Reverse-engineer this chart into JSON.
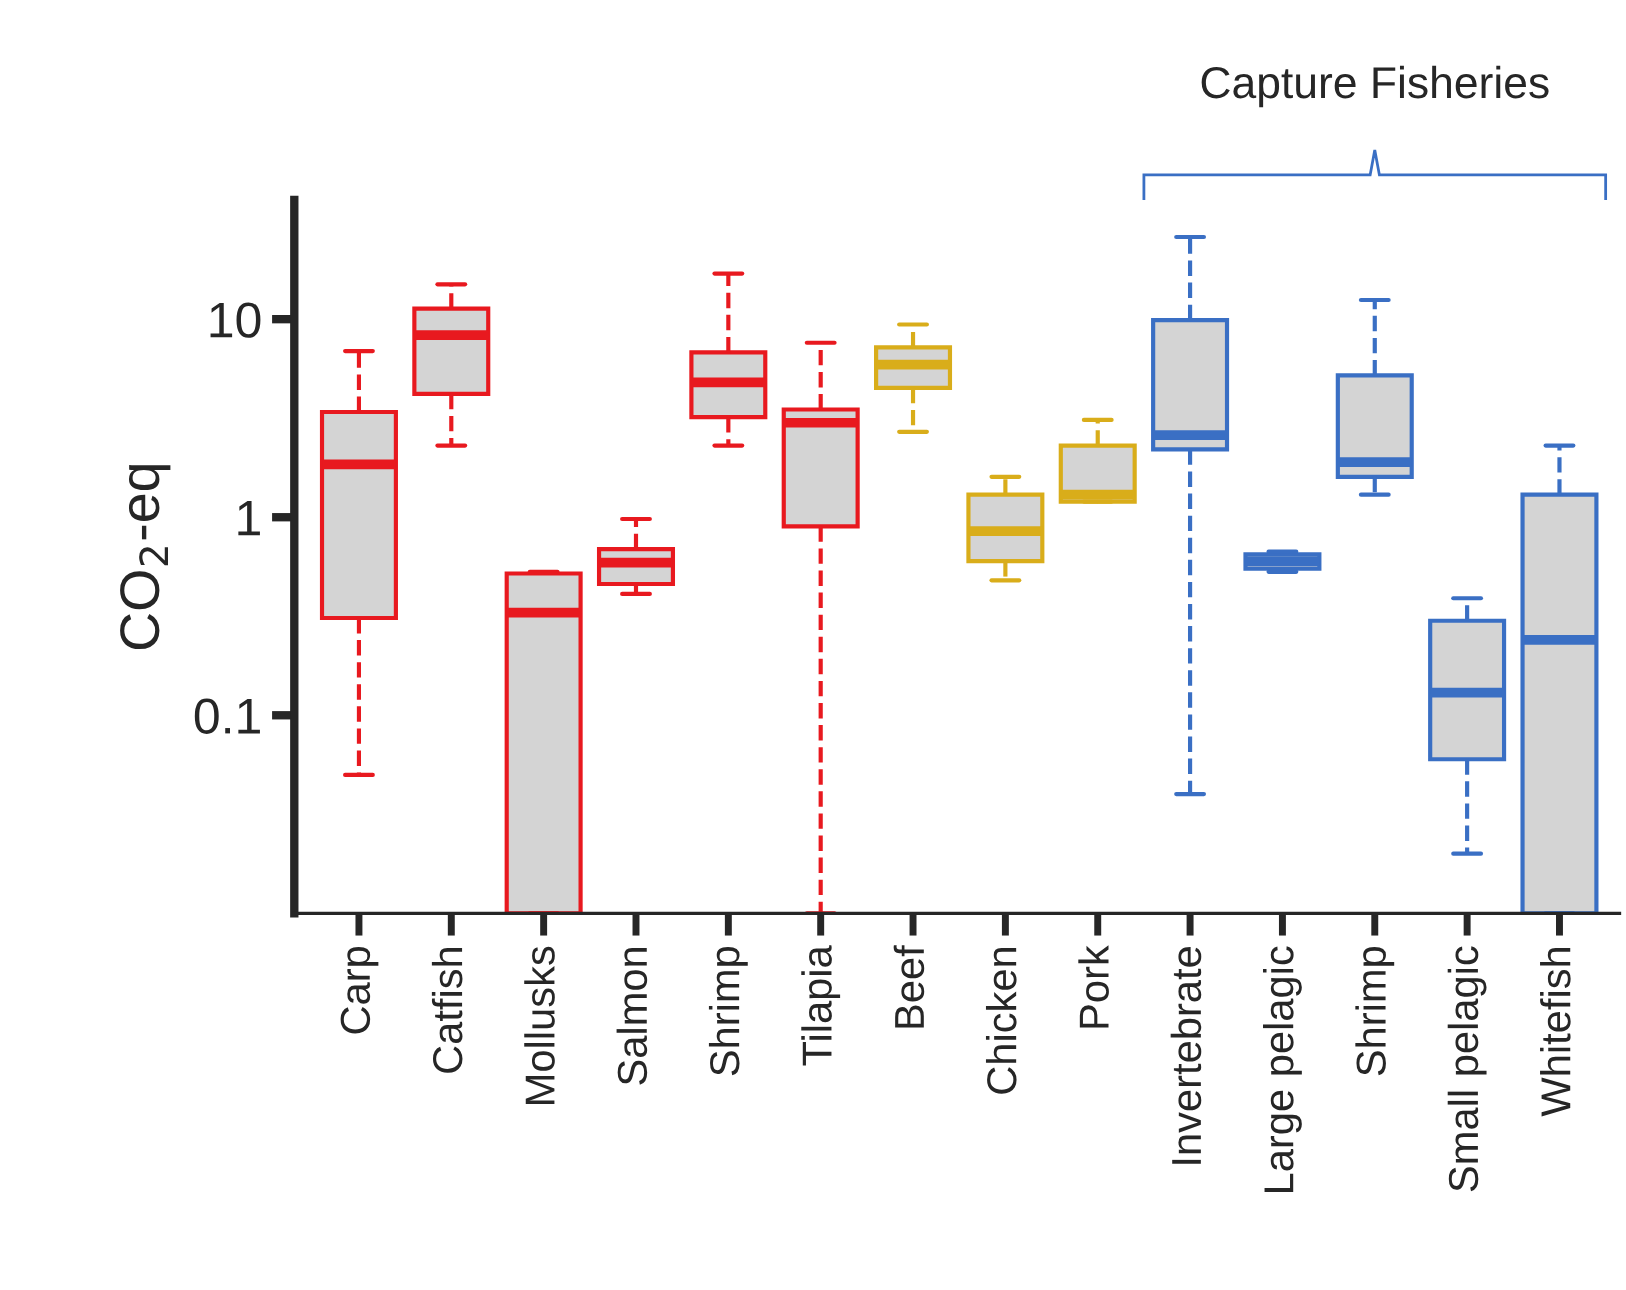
{
  "chart_data": {
    "type": "box",
    "ylabel": "CO$_{2}$-eq",
    "log": true,
    "ylim": [
      0.01,
      40
    ],
    "yticks": [
      0.1,
      1,
      10
    ],
    "categories": [
      "Carp",
      "Catfish",
      "Mollusks",
      "Salmon",
      "Shrimp",
      "Tilapia",
      "Beef",
      "Chicken",
      "Pork",
      "Invertebrate",
      "Large pelagic",
      "Shrimp",
      "Small pelagic",
      "Whitefish"
    ],
    "colors": [
      "#e8191f",
      "#e8191f",
      "#e8191f",
      "#e8191f",
      "#e8191f",
      "#e8191f",
      "#d9ad1a",
      "#d9ad1a",
      "#d9ad1a",
      "#3a6fc4",
      "#3a6fc4",
      "#3a6fc4",
      "#3a6fc4",
      "#3a6fc4"
    ],
    "boxes": [
      {
        "low": 0.05,
        "q1": 0.31,
        "median": 1.85,
        "q3": 3.4,
        "high": 6.9
      },
      {
        "low": 2.3,
        "q1": 4.2,
        "median": 8.3,
        "q3": 11.3,
        "high": 15
      },
      {
        "low": 0.01,
        "q1": 0.01,
        "median": 0.33,
        "q3": 0.52,
        "high": 0.53
      },
      {
        "low": 0.41,
        "q1": 0.46,
        "median": 0.59,
        "q3": 0.69,
        "high": 0.98
      },
      {
        "low": 2.3,
        "q1": 3.2,
        "median": 4.8,
        "q3": 6.8,
        "high": 17
      },
      {
        "low": 0.01,
        "q1": 0.9,
        "median": 3.0,
        "q3": 3.5,
        "high": 7.6
      },
      {
        "low": 2.7,
        "q1": 4.5,
        "median": 5.9,
        "q3": 7.2,
        "high": 9.4
      },
      {
        "low": 0.48,
        "q1": 0.6,
        "median": 0.85,
        "q3": 1.3,
        "high": 1.6
      },
      {
        "low": 1.2,
        "q1": 1.2,
        "median": 1.3,
        "q3": 2.3,
        "high": 3.1
      },
      {
        "low": 0.04,
        "q1": 2.2,
        "median": 2.6,
        "q3": 9.9,
        "high": 26
      },
      {
        "low": 0.53,
        "q1": 0.55,
        "median": 0.6,
        "q3": 0.65,
        "high": 0.67
      },
      {
        "low": 1.3,
        "q1": 1.6,
        "median": 1.9,
        "q3": 5.2,
        "high": 12.5
      },
      {
        "low": 0.02,
        "q1": 0.06,
        "median": 0.13,
        "q3": 0.3,
        "high": 0.39
      },
      {
        "low": 0.01,
        "q1": 0.01,
        "median": 0.24,
        "q3": 1.3,
        "high": 2.3
      }
    ],
    "annotations": [
      "Capture Fisheries"
    ],
    "grid": false,
    "legend": false
  }
}
